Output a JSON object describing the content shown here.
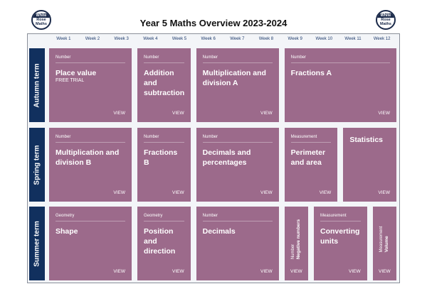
{
  "logo": "White Rose Maths",
  "title": "Year 5 Maths Overview 2023-2024",
  "weeks": [
    "Week 1",
    "Week 2",
    "Week 3",
    "Week 4",
    "Week 5",
    "Week 6",
    "Week 7",
    "Week 8",
    "Week 9",
    "Week 10",
    "Week 11",
    "Week 12"
  ],
  "colors": {
    "card": "#9c6a8b",
    "term": "#11305e"
  },
  "view_label": "VIEW",
  "terms": [
    {
      "label": "Autumn term",
      "cards": [
        {
          "category": "Number",
          "name": "Place value",
          "sub": "FREE TRIAL",
          "span": 3
        },
        {
          "category": "Number",
          "name": "Addition and subtraction",
          "span": 2
        },
        {
          "category": "Number",
          "name": "Multiplication and division A",
          "span": 3
        },
        {
          "category": "Number",
          "name": "Fractions A",
          "span": 4
        }
      ]
    },
    {
      "label": "Spring term",
      "cards": [
        {
          "category": "Number",
          "name": "Multiplication and division B",
          "span": 3
        },
        {
          "category": "Number",
          "name": "Fractions B",
          "span": 2
        },
        {
          "category": "Number",
          "name": "Decimals and percentages",
          "span": 3
        },
        {
          "category": "Measurement",
          "name": "Perimeter and area",
          "span": 2
        },
        {
          "category": "",
          "name": "Statistics",
          "span": 2
        }
      ]
    },
    {
      "label": "Summer term",
      "cards": [
        {
          "category": "Geometry",
          "name": "Shape",
          "span": 3
        },
        {
          "category": "Geometry",
          "name": "Position and direction",
          "span": 2
        },
        {
          "category": "Number",
          "name": "Decimals",
          "span": 3
        },
        {
          "category": "Number",
          "name": "Negative numbers",
          "span": 1,
          "vertical": true
        },
        {
          "category": "Measurement",
          "name": "Converting units",
          "span": 2
        },
        {
          "category": "Measurement",
          "name": "Volume",
          "span": 1,
          "vertical": true
        }
      ]
    }
  ]
}
